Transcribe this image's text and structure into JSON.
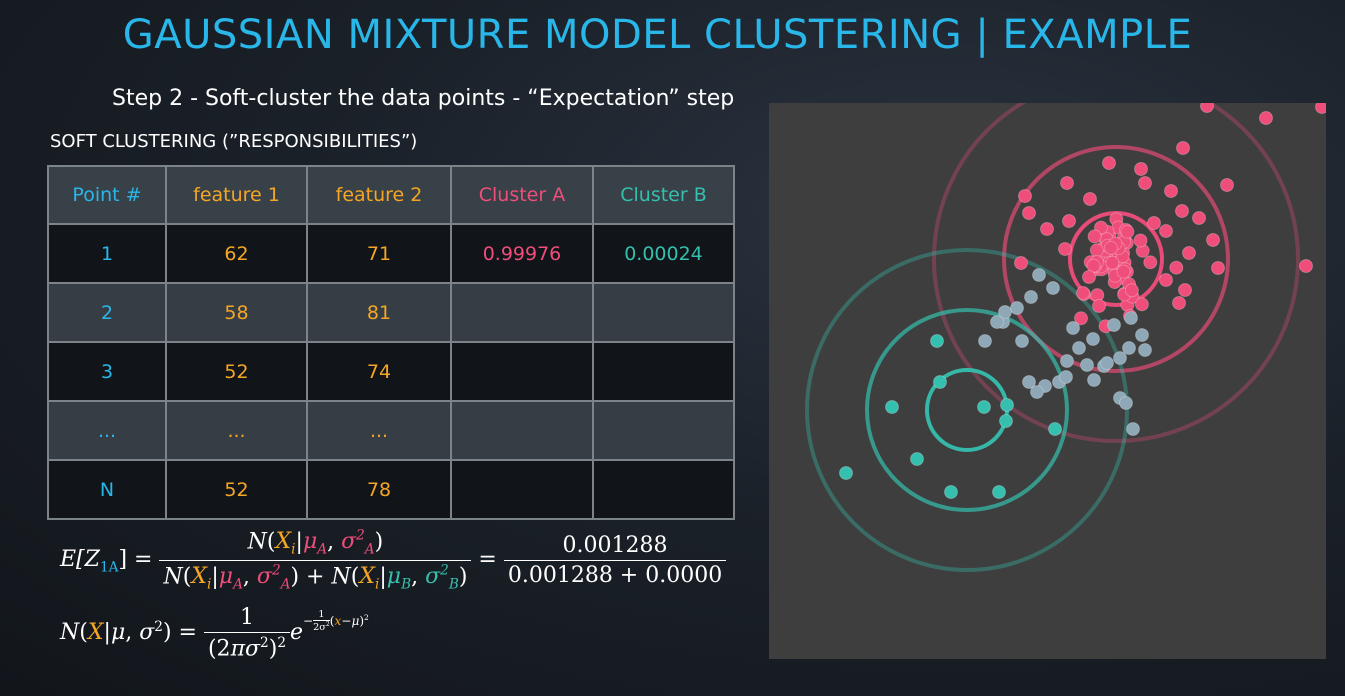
{
  "title": "GAUSSIAN MIXTURE MODEL CLUSTERING | EXAMPLE",
  "subtitle": "Step 2 - Soft-cluster the data points - “Expectation” step",
  "section_heading": "SOFT CLUSTERING (”RESPONSIBILITIES”)",
  "table": {
    "headers": [
      "Point #",
      "feature 1",
      "feature 2",
      "Cluster A",
      "Cluster B"
    ],
    "rows": [
      [
        "1",
        "62",
        "71",
        "0.99976",
        "0.00024"
      ],
      [
        "2",
        "58",
        "81",
        "",
        ""
      ],
      [
        "3",
        "52",
        "74",
        "",
        ""
      ],
      [
        "...",
        "...",
        "...",
        "",
        ""
      ],
      [
        "N",
        "52",
        "78",
        "",
        ""
      ]
    ]
  },
  "formula1": {
    "lhs_head": "E[Z",
    "lhs_sub": "1A",
    "lhs_tail": "] =",
    "num_value": "0.001288",
    "den_value": "0.001288 + 0.0000"
  },
  "formula2": {
    "numerator": "1"
  },
  "colors": {
    "title": "#29b7ea",
    "cluster_a": "#ef4d7a",
    "cluster_b": "#35bfae",
    "feature": "#f5a623",
    "mixed_point": "#8fa8b8"
  }
}
